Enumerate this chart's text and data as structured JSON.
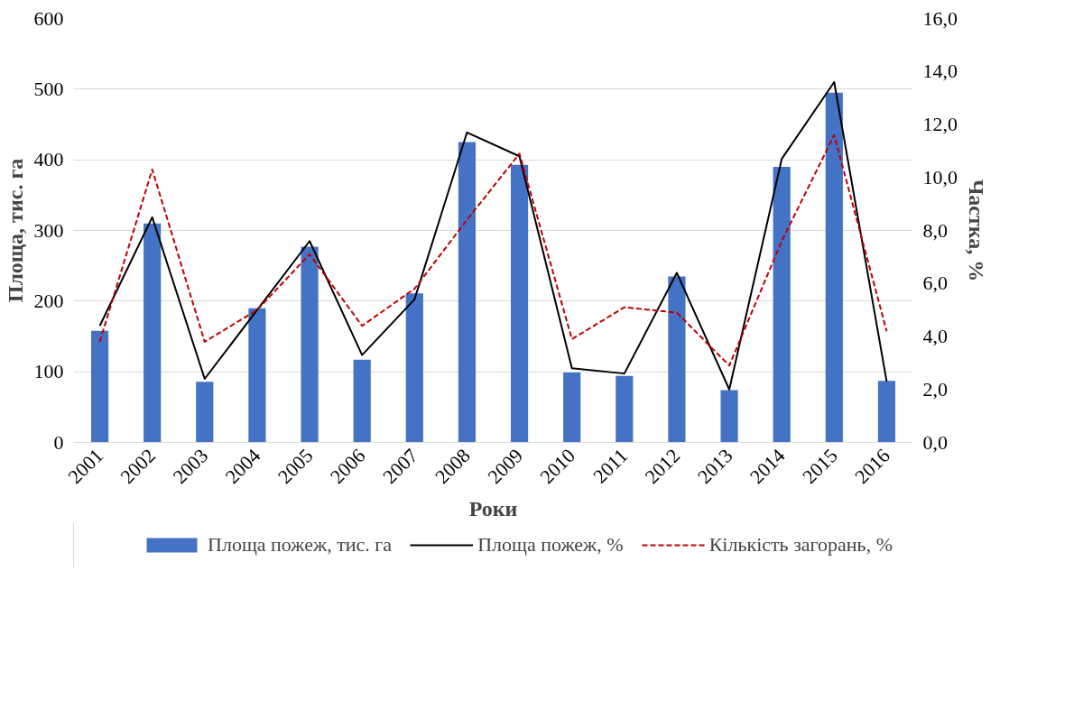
{
  "chart_data": {
    "type": "bar",
    "categories": [
      "2001",
      "2002",
      "2003",
      "2004",
      "2005",
      "2006",
      "2007",
      "2008",
      "2009",
      "2010",
      "2011",
      "2012",
      "2013",
      "2014",
      "2015",
      "2016"
    ],
    "xlabel": "Роки",
    "ylabel": "Площа, тис. га",
    "y2label": "Частка, %",
    "series": [
      {
        "name": "Площа пожеж, тис. га",
        "color": "#4472c4",
        "values": [
          158,
          310,
          86,
          190,
          277,
          117,
          211,
          425,
          393,
          99,
          94,
          235,
          74,
          390,
          495,
          87
        ]
      },
      {
        "name": "Площа пожеж, %",
        "type": "line",
        "axis": "y2",
        "color": "#000000",
        "line_style": "solid",
        "values": [
          4.4,
          8.5,
          2.4,
          5.0,
          7.6,
          3.3,
          5.4,
          11.7,
          10.8,
          2.8,
          2.6,
          6.4,
          2.0,
          10.7,
          13.6,
          2.3
        ]
      },
      {
        "name": "Кількість загорань, %",
        "type": "line",
        "axis": "y2",
        "color": "#c00000",
        "line_style": "dashed",
        "values": [
          3.8,
          10.3,
          3.8,
          5.0,
          7.1,
          4.4,
          5.8,
          8.4,
          10.9,
          3.9,
          5.1,
          4.9,
          2.9,
          7.6,
          11.6,
          4.2
        ]
      }
    ],
    "ylim": [
      0,
      600
    ],
    "yticks": [
      0,
      100,
      200,
      300,
      400,
      500,
      600
    ],
    "y2lim": [
      0,
      16
    ],
    "y2ticks": [
      {
        "value": 0,
        "label": "0,0"
      },
      {
        "value": 2,
        "label": "2,0"
      },
      {
        "value": 4,
        "label": "4,0"
      },
      {
        "value": 6,
        "label": "6,0"
      },
      {
        "value": 8,
        "label": "8,0"
      },
      {
        "value": 10,
        "label": "10,0"
      },
      {
        "value": 12,
        "label": "12,0"
      },
      {
        "value": 14,
        "label": "14,0"
      },
      {
        "value": 16,
        "label": "16,0"
      }
    ],
    "grid": "y",
    "legend": "bottom"
  }
}
